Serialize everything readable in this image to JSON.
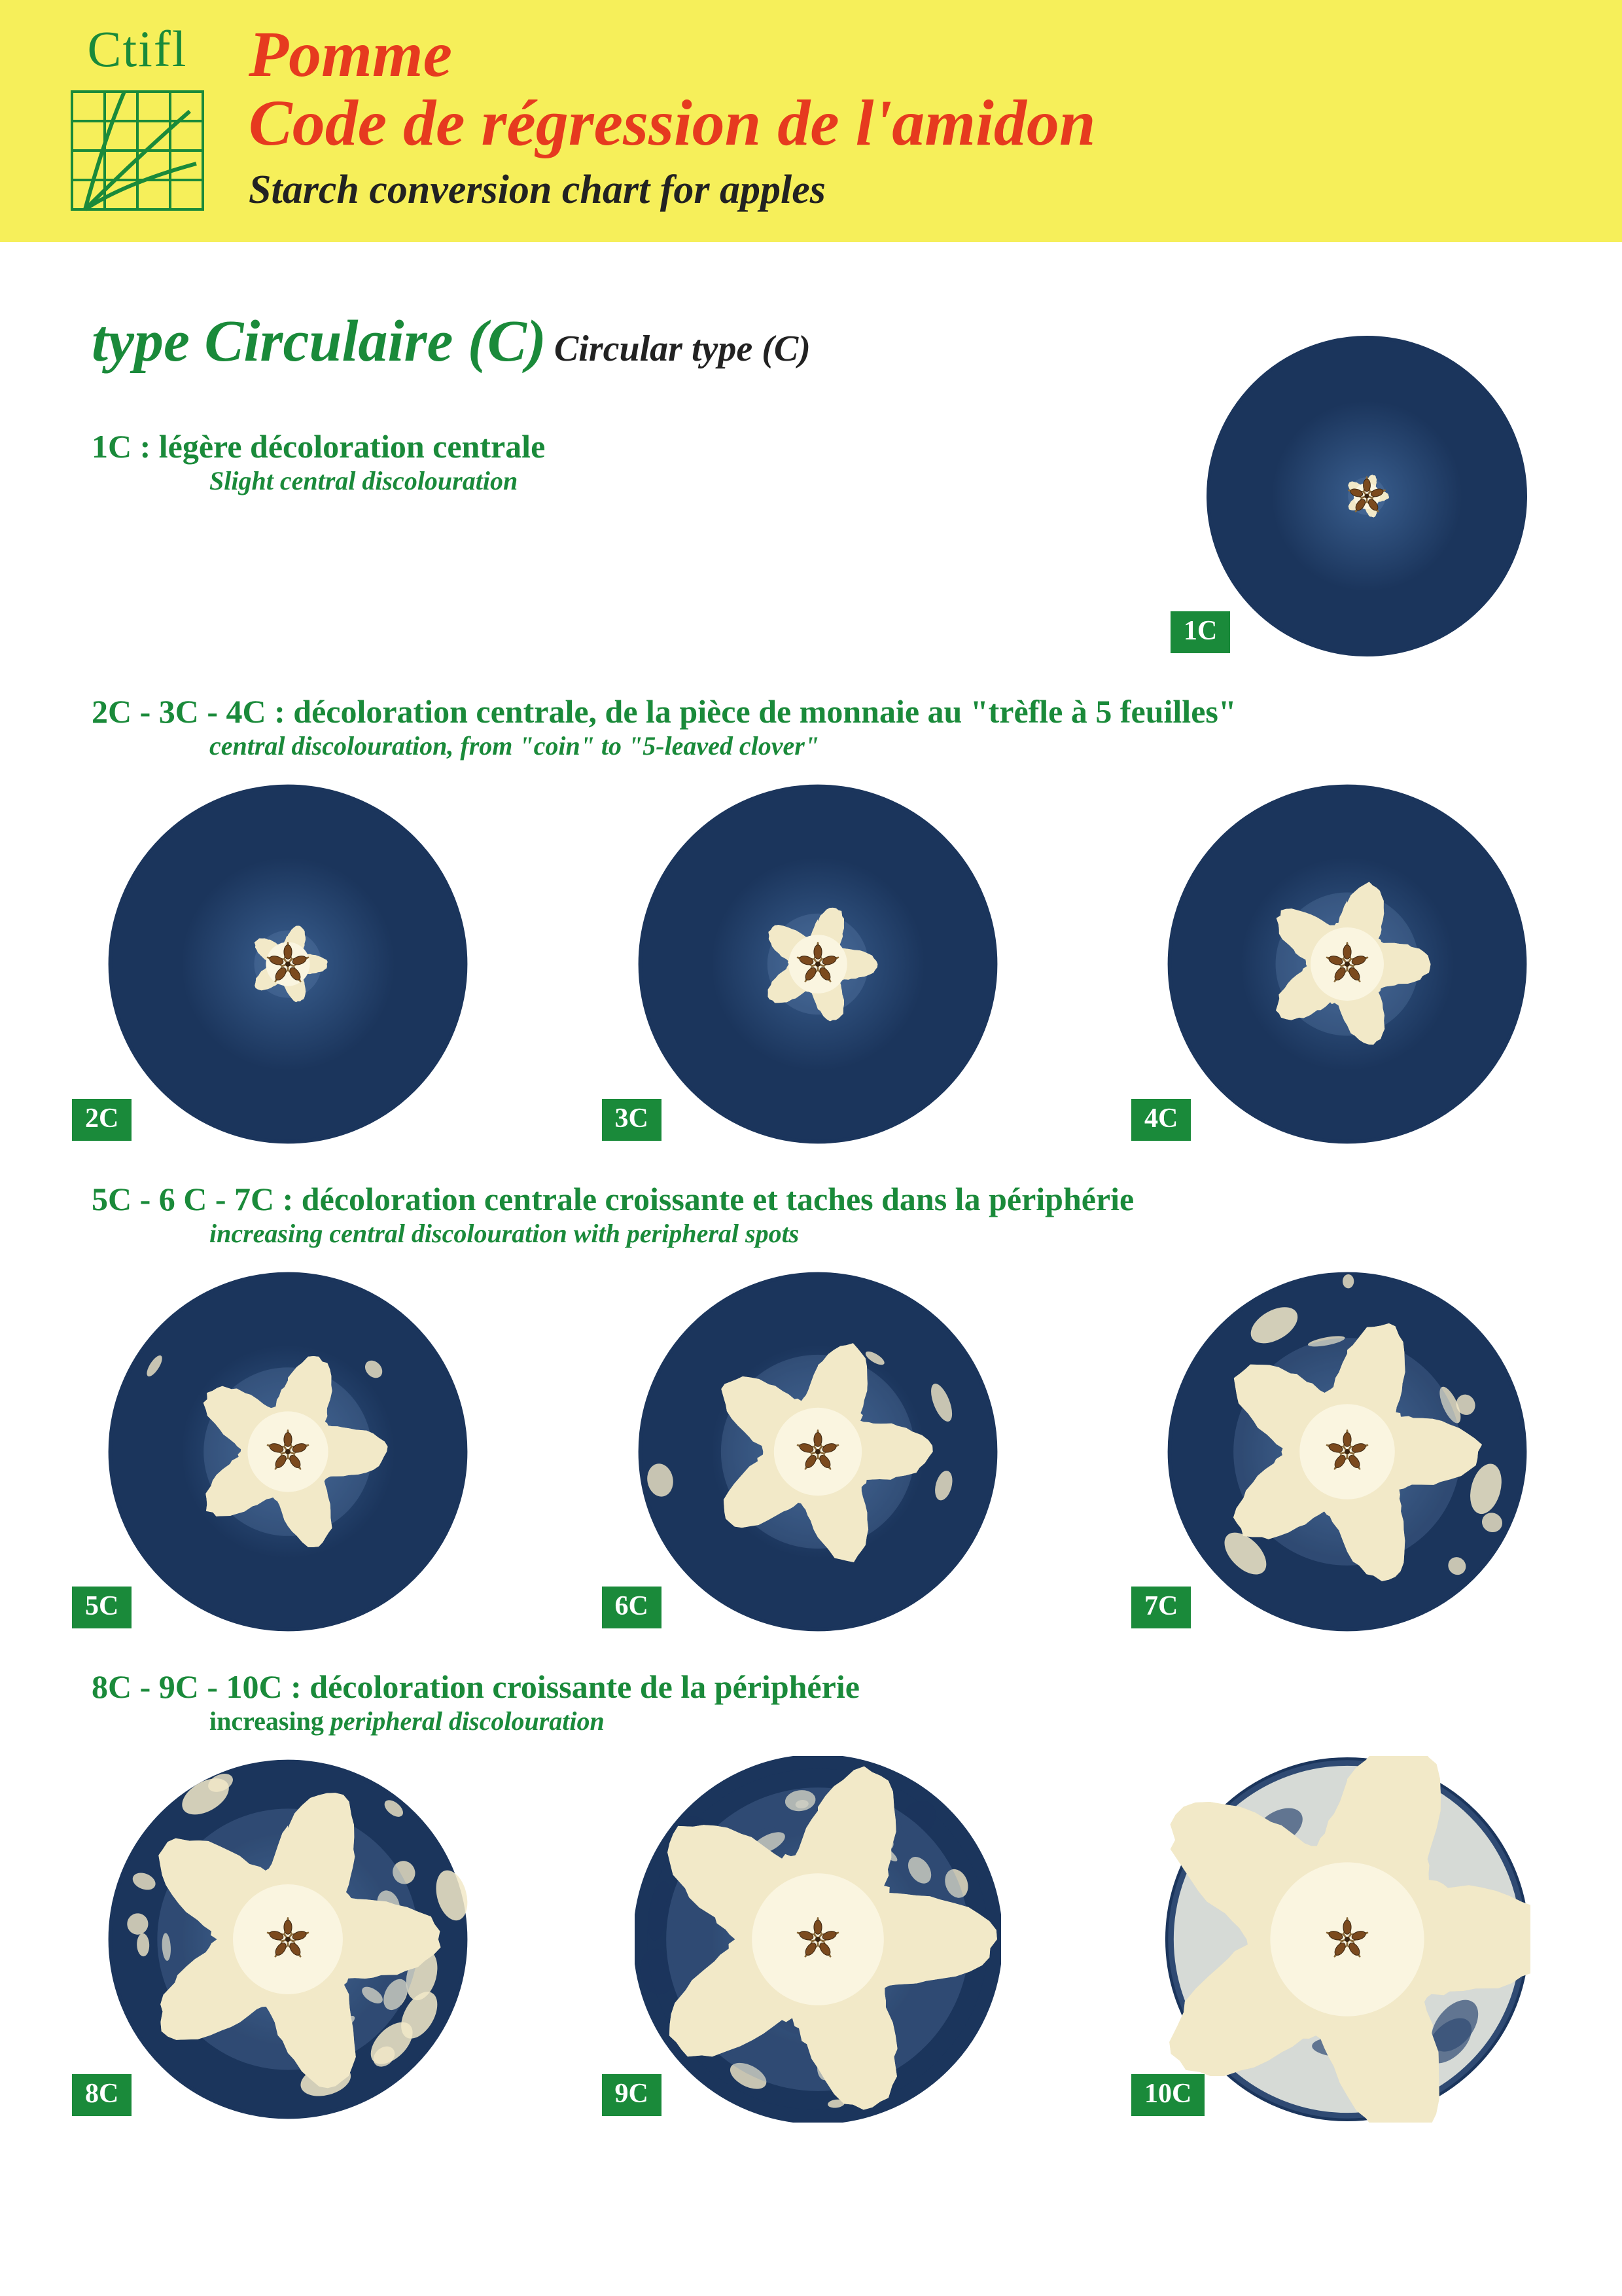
{
  "header": {
    "logo_text": "Ctifl",
    "title_fr_line1": "Pomme",
    "title_fr_line2": "Code de régression de l'amidon",
    "title_en": "Starch conversion chart for apples",
    "banner_bg": "#f6ef5a",
    "title_fr_color": "#e63a1f",
    "title_en_color": "#222222",
    "logo_color": "#1a8a3a"
  },
  "type_heading": {
    "fr": "type Circulaire (C)",
    "en": "Circular type (C)"
  },
  "sections": [
    {
      "label_fr": "1C : légère décoloration centrale",
      "label_en": "Slight central discolouration",
      "codes": [
        "1C"
      ]
    },
    {
      "label_fr": "2C - 3C - 4C : décoloration centrale, de la pièce de monnaie au \"trèfle à 5 feuilles\"",
      "label_en": "central discolouration, from \"coin\" to \"5-leaved clover\"",
      "codes": [
        "2C",
        "3C",
        "4C"
      ]
    },
    {
      "label_fr": "5C - 6 C - 7C : décoloration centrale croissante et taches dans la périphérie",
      "label_en": "increasing central discolouration with peripheral spots",
      "codes": [
        "5C",
        "6C",
        "7C"
      ]
    },
    {
      "label_fr": "8C - 9C - 10C : décoloration croissante de la périphérie",
      "label_en_prefix": "increasing ",
      "label_en_italic": "peripheral discolouration",
      "codes": [
        "8C",
        "9C",
        "10C"
      ]
    }
  ],
  "badge_bg": "#1a8a3a",
  "badge_text_color": "#ffffff",
  "green_text": "#1a8a3a",
  "apple": {
    "diameter_main": 560,
    "diameter_1c": 500,
    "dark_blue": "#1b355c",
    "mid_blue": "#3a5f8f",
    "light_blue": "#6b8db8",
    "flesh": "#f2e9c8",
    "flesh_light": "#faf5e0",
    "seed_brown": "#7b4a1e",
    "seed_dark": "#3b2510",
    "star_stroke": "#8a6a3a"
  },
  "stages": {
    "1C": {
      "center_r": 0.08,
      "clover": 0.1,
      "periph_spots": 0.0,
      "periph_clear": 0.0
    },
    "2C": {
      "center_r": 0.12,
      "clover": 0.16,
      "periph_spots": 0.0,
      "periph_clear": 0.0
    },
    "3C": {
      "center_r": 0.16,
      "clover": 0.24,
      "periph_spots": 0.0,
      "periph_clear": 0.0
    },
    "4C": {
      "center_r": 0.2,
      "clover": 0.34,
      "periph_spots": 0.0,
      "periph_clear": 0.0
    },
    "5C": {
      "center_r": 0.22,
      "clover": 0.4,
      "periph_spots": 0.05,
      "periph_clear": 0.0
    },
    "6C": {
      "center_r": 0.24,
      "clover": 0.46,
      "periph_spots": 0.1,
      "periph_clear": 0.0
    },
    "7C": {
      "center_r": 0.26,
      "clover": 0.54,
      "periph_spots": 0.18,
      "periph_clear": 0.02
    },
    "8C": {
      "center_r": 0.3,
      "clover": 0.62,
      "periph_spots": 0.3,
      "periph_clear": 0.15
    },
    "9C": {
      "center_r": 0.36,
      "clover": 0.72,
      "periph_spots": 0.45,
      "periph_clear": 0.4
    },
    "10C": {
      "center_r": 0.42,
      "clover": 0.85,
      "periph_spots": 0.6,
      "periph_clear": 0.8
    }
  }
}
